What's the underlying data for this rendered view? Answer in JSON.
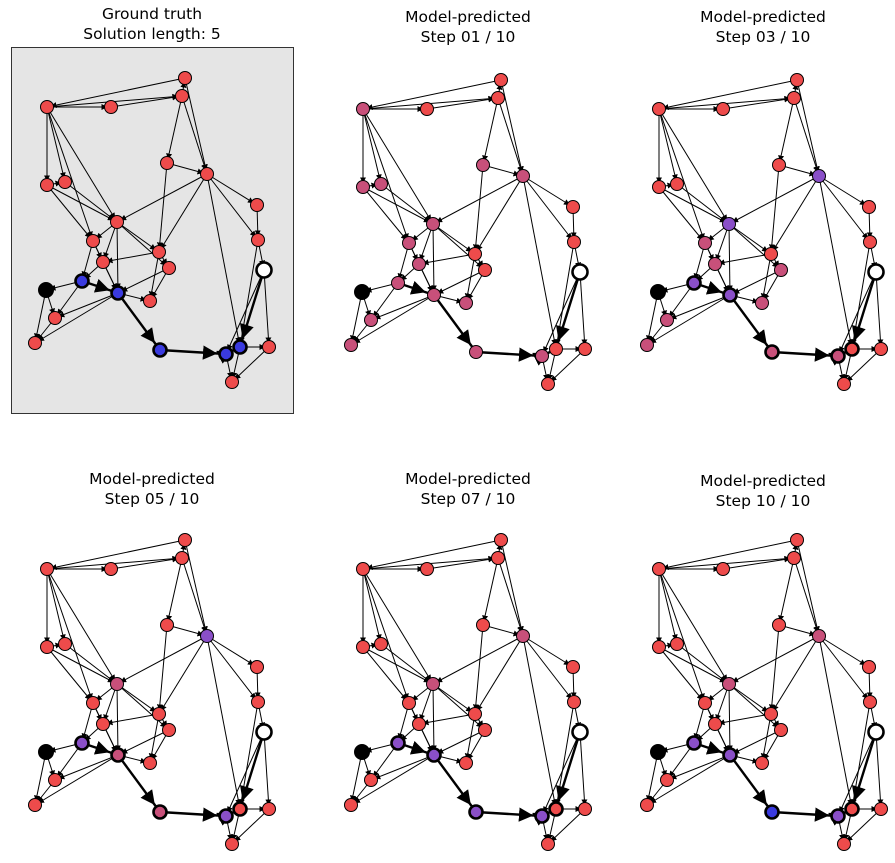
{
  "panels": [
    {
      "title": "Ground truth",
      "subtitle": "Solution length: 5",
      "kind": "truth"
    },
    {
      "title": "Model-predicted",
      "subtitle": "Step 01 / 10",
      "kind": "step1"
    },
    {
      "title": "Model-predicted",
      "subtitle": "Step 03 / 10",
      "kind": "step3"
    },
    {
      "title": "Model-predicted",
      "subtitle": "Step 05 / 10",
      "kind": "step5"
    },
    {
      "title": "Model-predicted",
      "subtitle": "Step 07 / 10",
      "kind": "step7"
    },
    {
      "title": "Model-predicted",
      "subtitle": "Step 10 / 10",
      "kind": "step10"
    }
  ],
  "colors": {
    "node_default": "#ee4b4b",
    "node_mid": "#c8507a",
    "node_purple": "#8a4fc8",
    "node_blue": "#3a3adf",
    "start": "#000000",
    "goal": "#ffffff",
    "truth_background": "#e5e5e5"
  }
}
